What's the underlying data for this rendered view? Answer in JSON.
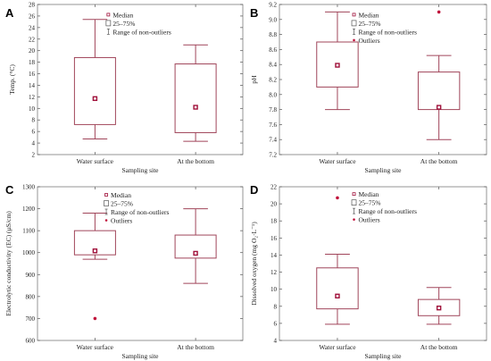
{
  "legend": {
    "median": "Median",
    "box": "25–75%",
    "range": "Range of non-outliers",
    "outliers": "Outliers"
  },
  "colors": {
    "box": "#a0455a",
    "median": "#a0103a",
    "outlier": "#c0103a"
  },
  "chart_data": [
    {
      "panel": "A",
      "type": "box",
      "xlabel": "Sampling site",
      "ylabel": "Temp. (°C)",
      "categories": [
        "Water surface",
        "At the bottom"
      ],
      "ylim": [
        2,
        28
      ],
      "yticks": [
        2,
        4,
        6,
        8,
        10,
        12,
        14,
        16,
        18,
        20,
        22,
        24,
        26,
        28
      ],
      "boxes": [
        {
          "min": 4.7,
          "q1": 7.2,
          "median": 11.7,
          "q3": 18.8,
          "max": 25.4,
          "outliers": []
        },
        {
          "min": 4.3,
          "q1": 5.8,
          "median": 10.2,
          "q3": 17.7,
          "max": 21.0,
          "outliers": []
        }
      ],
      "legend_items": [
        "median",
        "box",
        "range"
      ]
    },
    {
      "panel": "B",
      "type": "box",
      "xlabel": "Sampling site",
      "ylabel": "pH",
      "categories": [
        "Water surface",
        "At the bottom"
      ],
      "ylim": [
        7.2,
        9.2
      ],
      "yticks": [
        7.2,
        7.4,
        7.6,
        7.8,
        8.0,
        8.2,
        8.4,
        8.6,
        8.8,
        9.0,
        9.2
      ],
      "boxes": [
        {
          "min": 7.8,
          "q1": 8.1,
          "median": 8.39,
          "q3": 8.7,
          "max": 9.1,
          "outliers": []
        },
        {
          "min": 7.4,
          "q1": 7.8,
          "median": 7.83,
          "q3": 8.3,
          "max": 8.52,
          "outliers": [
            9.1
          ]
        }
      ],
      "legend_items": [
        "median",
        "box",
        "range",
        "outliers"
      ]
    },
    {
      "panel": "C",
      "type": "box",
      "xlabel": "Sampling site",
      "ylabel": "Electrolytic conductivity (EC) (µS/cm)",
      "categories": [
        "Water surface",
        "At the bottom"
      ],
      "ylim": [
        600,
        1300
      ],
      "yticks": [
        600,
        700,
        800,
        900,
        1000,
        1100,
        1200,
        1300
      ],
      "boxes": [
        {
          "min": 970,
          "q1": 990,
          "median": 1008,
          "q3": 1100,
          "max": 1180,
          "outliers": [
            700
          ]
        },
        {
          "min": 860,
          "q1": 975,
          "median": 997,
          "q3": 1080,
          "max": 1200,
          "outliers": []
        }
      ],
      "legend_items": [
        "median",
        "box",
        "range",
        "outliers"
      ]
    },
    {
      "panel": "D",
      "type": "box",
      "xlabel": "Sampling site",
      "ylabel": "Dissolved oxygen (mg O₂·L⁻¹)",
      "categories": [
        "Water surface",
        "At the bottom"
      ],
      "ylim": [
        4,
        22
      ],
      "yticks": [
        4,
        6,
        8,
        10,
        12,
        14,
        16,
        18,
        20,
        22
      ],
      "boxes": [
        {
          "min": 5.9,
          "q1": 7.7,
          "median": 9.2,
          "q3": 12.5,
          "max": 14.1,
          "outliers": [
            20.7
          ]
        },
        {
          "min": 5.9,
          "q1": 6.9,
          "median": 7.8,
          "q3": 8.8,
          "max": 10.2,
          "outliers": []
        }
      ],
      "legend_items": [
        "median",
        "box",
        "range",
        "outliers"
      ]
    }
  ]
}
